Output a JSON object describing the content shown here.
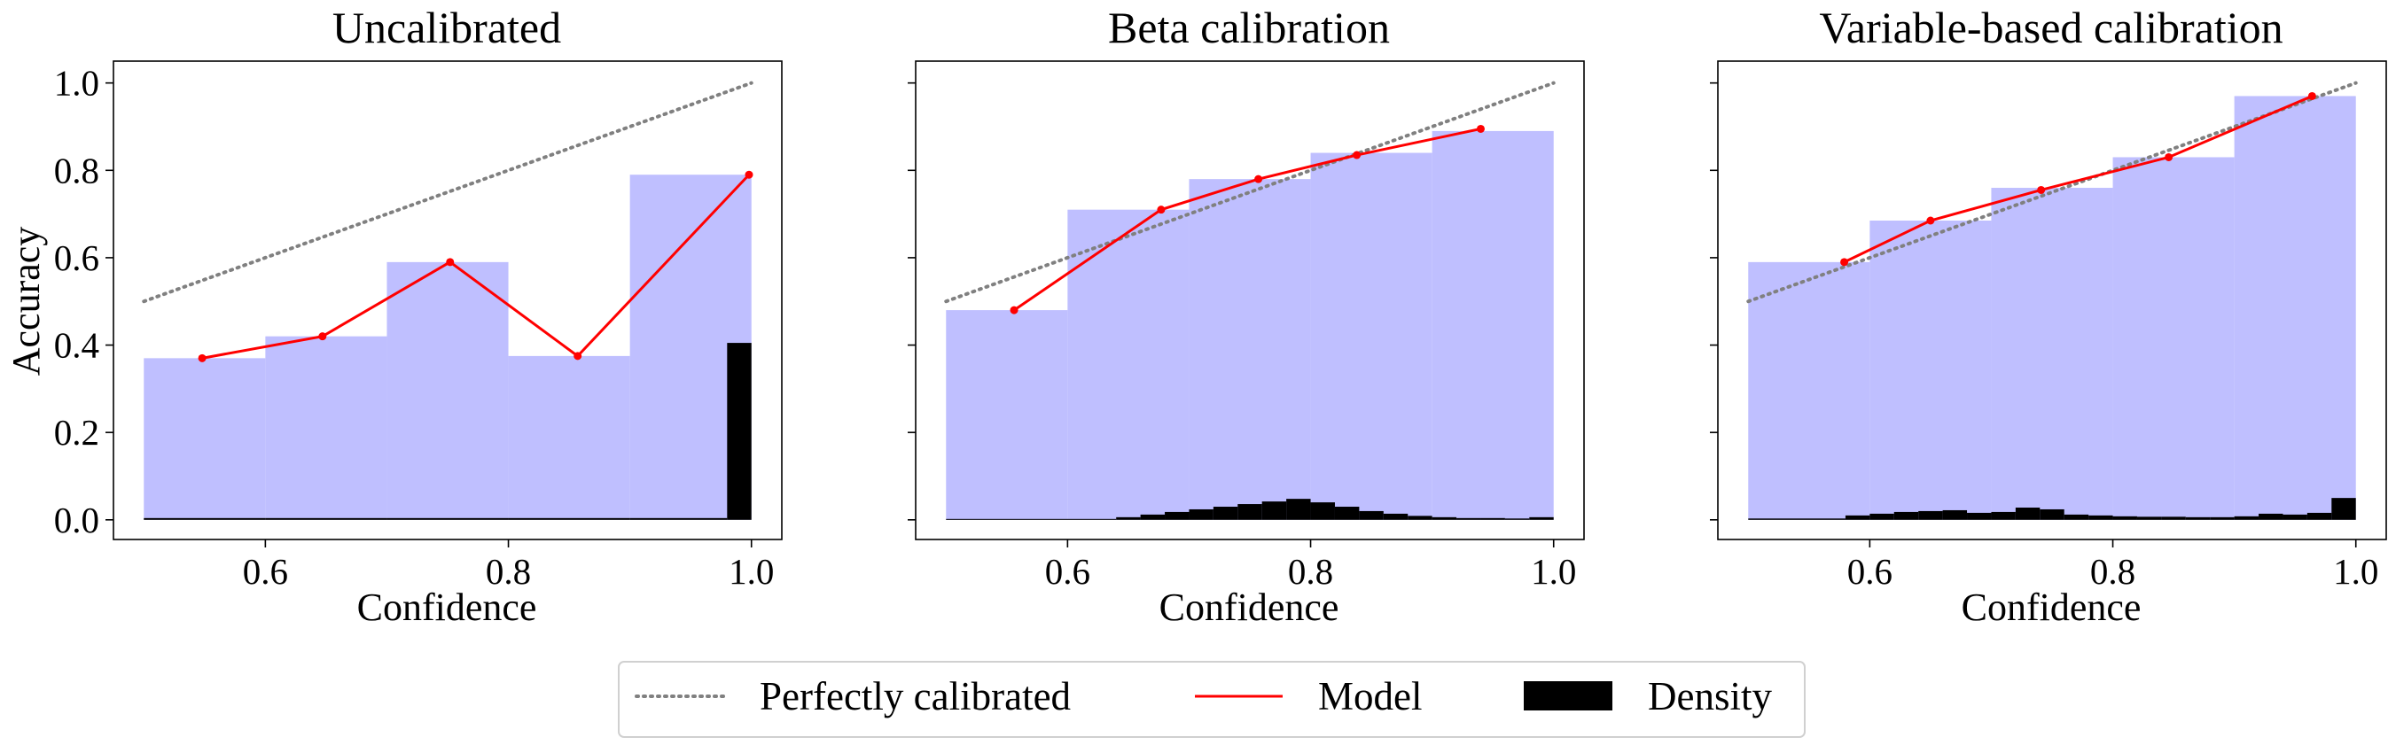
{
  "colors": {
    "bar": "#bfbfff",
    "model": "#ff0000",
    "perfect": "#808080",
    "density": "#000000"
  },
  "legend": {
    "placement": "bottom-center",
    "items": [
      {
        "key": "perfect",
        "label": "Perfectly calibrated"
      },
      {
        "key": "model",
        "label": "Model"
      },
      {
        "key": "density",
        "label": "Density"
      }
    ]
  },
  "chart_data": [
    {
      "type": "bar",
      "title": "Uncalibrated",
      "xlabel": "Confidence",
      "ylabel": "Accuracy",
      "xlim": [
        0.475,
        1.025
      ],
      "ylim": [
        -0.045,
        1.05
      ],
      "xticks": [
        "0.6",
        "0.8",
        "1.0"
      ],
      "yticks": [
        "0.0",
        "0.2",
        "0.4",
        "0.6",
        "0.8",
        "1.0"
      ],
      "bin_edges": [
        0.5,
        0.6,
        0.7,
        0.8,
        0.9,
        1.0
      ],
      "bin_accuracy": [
        0.37,
        0.42,
        0.59,
        0.375,
        0.79
      ],
      "model_points": {
        "x": [
          0.548,
          0.647,
          0.752,
          0.857,
          0.998
        ],
        "y": [
          0.37,
          0.42,
          0.59,
          0.375,
          0.79
        ]
      },
      "perfect_line": {
        "x": [
          0.5,
          1.0
        ],
        "y": [
          0.5,
          1.0
        ]
      },
      "density": {
        "x": [
          0.5,
          0.6,
          0.7,
          0.8,
          0.9,
          0.98
        ],
        "width": [
          0.1,
          0.1,
          0.1,
          0.1,
          0.08,
          0.02
        ],
        "height": [
          0.004,
          0.004,
          0.004,
          0.004,
          0.004,
          0.405
        ]
      }
    },
    {
      "type": "bar",
      "title": "Beta calibration",
      "xlabel": "Confidence",
      "ylabel": "",
      "xlim": [
        0.475,
        1.025
      ],
      "ylim": [
        -0.045,
        1.05
      ],
      "xticks": [
        "0.6",
        "0.8",
        "1.0"
      ],
      "yticks": [],
      "bin_edges": [
        0.5,
        0.6,
        0.7,
        0.8,
        0.9,
        1.0
      ],
      "bin_accuracy": [
        0.48,
        0.71,
        0.78,
        0.84,
        0.89
      ],
      "model_points": {
        "x": [
          0.556,
          0.677,
          0.757,
          0.838,
          0.94
        ],
        "y": [
          0.48,
          0.71,
          0.78,
          0.835,
          0.895
        ]
      },
      "perfect_line": {
        "x": [
          0.5,
          1.0
        ],
        "y": [
          0.5,
          1.0
        ]
      },
      "density": {
        "x": [
          0.5,
          0.64,
          0.66,
          0.68,
          0.7,
          0.72,
          0.74,
          0.76,
          0.78,
          0.8,
          0.82,
          0.84,
          0.86,
          0.88,
          0.9,
          0.92,
          0.94,
          0.96,
          0.98
        ],
        "width": [
          0.14,
          0.02,
          0.02,
          0.02,
          0.02,
          0.02,
          0.02,
          0.02,
          0.02,
          0.02,
          0.02,
          0.02,
          0.02,
          0.02,
          0.02,
          0.02,
          0.02,
          0.02,
          0.02
        ],
        "height": [
          0.002,
          0.006,
          0.012,
          0.018,
          0.024,
          0.03,
          0.036,
          0.042,
          0.048,
          0.04,
          0.03,
          0.02,
          0.014,
          0.009,
          0.006,
          0.004,
          0.004,
          0.003,
          0.006
        ]
      }
    },
    {
      "type": "bar",
      "title": "Variable-based calibration",
      "xlabel": "Confidence",
      "ylabel": "",
      "xlim": [
        0.475,
        1.025
      ],
      "ylim": [
        -0.045,
        1.05
      ],
      "xticks": [
        "0.6",
        "0.8",
        "1.0"
      ],
      "yticks": [],
      "bin_edges": [
        0.5,
        0.6,
        0.7,
        0.8,
        0.9,
        1.0
      ],
      "bin_accuracy": [
        0.59,
        0.685,
        0.76,
        0.83,
        0.97
      ],
      "model_points": {
        "x": [
          0.579,
          0.65,
          0.741,
          0.846,
          0.964
        ],
        "y": [
          0.59,
          0.685,
          0.755,
          0.83,
          0.97
        ]
      },
      "perfect_line": {
        "x": [
          0.5,
          1.0
        ],
        "y": [
          0.5,
          1.0
        ]
      },
      "density": {
        "x": [
          0.5,
          0.58,
          0.6,
          0.62,
          0.64,
          0.66,
          0.68,
          0.7,
          0.72,
          0.74,
          0.76,
          0.78,
          0.8,
          0.82,
          0.84,
          0.86,
          0.88,
          0.9,
          0.92,
          0.94,
          0.96,
          0.98
        ],
        "width": [
          0.08,
          0.02,
          0.02,
          0.02,
          0.02,
          0.02,
          0.02,
          0.02,
          0.02,
          0.02,
          0.02,
          0.02,
          0.02,
          0.02,
          0.02,
          0.02,
          0.02,
          0.02,
          0.02,
          0.02,
          0.02,
          0.02
        ],
        "height": [
          0.003,
          0.01,
          0.014,
          0.018,
          0.02,
          0.022,
          0.016,
          0.018,
          0.028,
          0.024,
          0.012,
          0.01,
          0.008,
          0.007,
          0.007,
          0.006,
          0.006,
          0.008,
          0.014,
          0.012,
          0.016,
          0.05
        ]
      }
    }
  ]
}
